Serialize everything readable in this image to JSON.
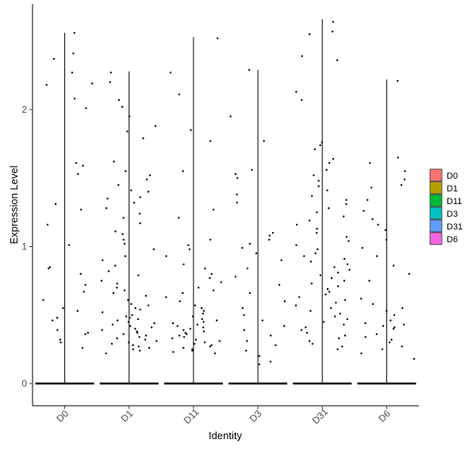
{
  "chart_data": {
    "type": "scatter",
    "title": "",
    "xlabel": "Identity",
    "ylabel": "Expression Level",
    "ylim": [
      -0.15,
      2.7
    ],
    "y_ticks": [
      0,
      1,
      2
    ],
    "grid": false,
    "legend_placement": "right",
    "categories": [
      "D0",
      "D1",
      "D11",
      "D3",
      "D31",
      "D6"
    ],
    "colors": {
      "D0": "#F8766D",
      "D1": "#B79F00",
      "D11": "#00BA38",
      "D3": "#00BFC4",
      "D31": "#619CFF",
      "D6": "#F564E3"
    },
    "violin_max": [
      2.56,
      2.28,
      2.53,
      2.29,
      2.66,
      2.22
    ],
    "series": [
      {
        "name": "D0",
        "nonzero_values": [
          2.41,
          2.37,
          2.27,
          2.19,
          2.08,
          2.56,
          2.18,
          2.01,
          1.61,
          1.59,
          1.53,
          1.31,
          1.27,
          1.16,
          1.01,
          0.85,
          0.84,
          0.8,
          0.72,
          0.67,
          0.61,
          0.55,
          0.53,
          0.48,
          0.46,
          0.39,
          0.37,
          0.36,
          0.32,
          0.3,
          0.26
        ]
      },
      {
        "name": "D1",
        "nonzero_values": [
          2.27,
          2.2,
          2.07,
          2.02,
          1.95,
          1.88,
          1.84,
          1.79,
          1.62,
          1.55,
          1.52,
          1.49,
          1.45,
          1.41,
          1.4,
          1.36,
          1.35,
          1.32,
          1.28,
          1.24,
          1.21,
          1.17,
          1.11,
          1.09,
          1.05,
          1.02,
          0.98,
          0.93,
          0.9,
          0.86,
          0.82,
          0.79,
          0.75,
          0.73,
          0.7,
          0.68,
          0.66,
          0.64,
          0.61,
          0.58,
          0.57,
          0.55,
          0.54,
          0.52,
          0.5,
          0.49,
          0.48,
          0.47,
          0.46,
          0.45,
          0.44,
          0.43,
          0.42,
          0.41,
          0.4,
          0.39,
          0.38,
          0.37,
          0.36,
          0.35,
          0.34,
          0.33,
          0.32,
          0.31,
          0.3,
          0.29,
          0.28,
          0.27,
          0.26,
          0.25,
          0.24,
          0.22
        ]
      },
      {
        "name": "D11",
        "nonzero_values": [
          2.52,
          2.27,
          2.11,
          1.85,
          1.77,
          1.55,
          1.27,
          1.21,
          1.05,
          1.01,
          0.98,
          0.93,
          0.87,
          0.84,
          0.8,
          0.77,
          0.74,
          0.7,
          0.68,
          0.66,
          0.63,
          0.6,
          0.57,
          0.55,
          0.53,
          0.51,
          0.49,
          0.47,
          0.46,
          0.45,
          0.44,
          0.43,
          0.42,
          0.41,
          0.4,
          0.39,
          0.38,
          0.37,
          0.36,
          0.35,
          0.34,
          0.33,
          0.32,
          0.31,
          0.3,
          0.29,
          0.28,
          0.27,
          0.26,
          0.25,
          0.24,
          0.23,
          0.22
        ]
      },
      {
        "name": "D3",
        "nonzero_values": [
          2.29,
          1.95,
          1.77,
          1.56,
          1.53,
          1.5,
          1.38,
          1.32,
          1.1,
          1.08,
          1.05,
          1.02,
          0.99,
          0.95,
          0.9,
          0.84,
          0.78,
          0.72,
          0.66,
          0.6,
          0.55,
          0.5,
          0.46,
          0.42,
          0.39,
          0.35,
          0.31,
          0.28,
          0.24,
          0.2,
          0.16,
          0.14
        ]
      },
      {
        "name": "D31",
        "nonzero_values": [
          2.64,
          2.57,
          2.55,
          2.39,
          2.36,
          2.13,
          2.07,
          1.76,
          1.74,
          1.71,
          1.64,
          1.61,
          1.56,
          1.52,
          1.48,
          1.44,
          1.41,
          1.37,
          1.34,
          1.31,
          1.28,
          1.25,
          1.22,
          1.19,
          1.16,
          1.13,
          1.1,
          1.07,
          1.04,
          1.01,
          0.98,
          0.95,
          0.93,
          0.91,
          0.89,
          0.87,
          0.85,
          0.83,
          0.81,
          0.79,
          0.77,
          0.75,
          0.73,
          0.71,
          0.69,
          0.67,
          0.65,
          0.63,
          0.61,
          0.59,
          0.57,
          0.55,
          0.53,
          0.51,
          0.49,
          0.47,
          0.45,
          0.43,
          0.41,
          0.39,
          0.37,
          0.35,
          0.33,
          0.31,
          0.29,
          0.27,
          0.25
        ]
      },
      {
        "name": "D6",
        "nonzero_values": [
          2.21,
          1.65,
          1.61,
          1.55,
          1.49,
          1.45,
          1.43,
          1.34,
          1.26,
          1.2,
          1.16,
          1.12,
          1.05,
          0.99,
          0.93,
          0.86,
          0.8,
          0.75,
          0.62,
          0.58,
          0.55,
          0.53,
          0.5,
          0.46,
          0.44,
          0.43,
          0.42,
          0.41,
          0.4,
          0.36,
          0.34,
          0.32,
          0.3,
          0.27,
          0.25,
          0.22,
          0.18
        ]
      }
    ]
  }
}
